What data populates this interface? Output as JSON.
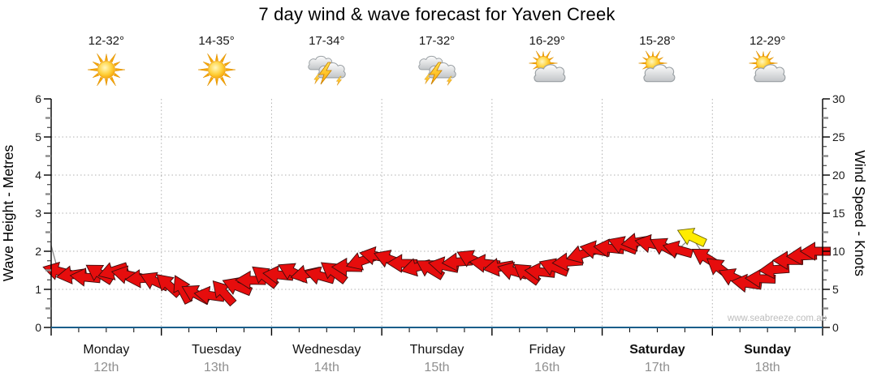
{
  "page": {
    "title": "7 day wind & wave forecast for Yaven Creek",
    "watermark": "www.seabreeze.com.au"
  },
  "days": [
    {
      "name": "Monday",
      "date": "12th",
      "temps": "12-32°",
      "icon": "sunny",
      "bold": false
    },
    {
      "name": "Tuesday",
      "date": "13th",
      "temps": "14-35°",
      "icon": "sunny",
      "bold": false
    },
    {
      "name": "Wednesday",
      "date": "14th",
      "temps": "17-34°",
      "icon": "storm",
      "bold": false
    },
    {
      "name": "Thursday",
      "date": "15th",
      "temps": "17-32°",
      "icon": "storm",
      "bold": false
    },
    {
      "name": "Friday",
      "date": "16th",
      "temps": "16-29°",
      "icon": "sun-cloud",
      "bold": false
    },
    {
      "name": "Saturday",
      "date": "17th",
      "temps": "15-28°",
      "icon": "sun-cloud",
      "bold": true
    },
    {
      "name": "Sunday",
      "date": "18th",
      "temps": "12-29°",
      "icon": "sun-cloud",
      "bold": true
    }
  ],
  "axes": {
    "left": {
      "title": "Wave Height - Metres",
      "tick_labels": [
        "0",
        "1",
        "2",
        "3",
        "4",
        "5",
        "6"
      ],
      "range": [
        0,
        6
      ]
    },
    "right": {
      "title": "Wind Speed - Knots",
      "tick_labels": [
        "0",
        "5",
        "10",
        "15",
        "20",
        "25",
        "30"
      ],
      "range": [
        0,
        30
      ]
    }
  },
  "chart_data": {
    "type": "wind-arrows",
    "title": "7 day wind & wave forecast for Yaven Creek",
    "x_categories": [
      "Monday 12th",
      "Tuesday 13th",
      "Wednesday 14th",
      "Thursday 15th",
      "Friday 16th",
      "Saturday 17th",
      "Sunday 18th"
    ],
    "samples_per_day": 8,
    "y_left": {
      "label": "Wave Height - Metres",
      "min": 0,
      "max": 6
    },
    "y_right": {
      "label": "Wind Speed - Knots",
      "min": 0,
      "max": 30
    },
    "grid": "dotted",
    "wind_speed_knots": [
      7.4,
      6.9,
      6.6,
      7.1,
      7.4,
      6.9,
      6.4,
      6.1,
      5.6,
      5.0,
      4.4,
      4.2,
      4.6,
      5.4,
      6.2,
      6.7,
      6.9,
      7.3,
      7.0,
      6.8,
      7.3,
      7.9,
      8.7,
      9.4,
      9.0,
      8.4,
      7.9,
      7.7,
      8.1,
      8.6,
      9.0,
      8.4,
      7.9,
      7.4,
      7.1,
      7.3,
      7.9,
      8.6,
      9.6,
      10.2,
      10.4,
      10.8,
      11.2,
      11.0,
      10.6,
      10.2,
      11.9,
      9.2,
      7.8,
      6.6,
      5.8,
      6.4,
      7.6,
      8.8,
      9.4,
      10.0
    ],
    "wind_dir_deg": [
      195,
      172,
      186,
      212,
      162,
      192,
      176,
      205,
      222,
      243,
      208,
      188,
      228,
      202,
      181,
      218,
      186,
      207,
      168,
      196,
      217,
      181,
      161,
      191,
      201,
      181,
      166,
      211,
      191,
      176,
      206,
      186,
      171,
      196,
      216,
      186,
      201,
      176,
      163,
      191,
      186,
      201,
      171,
      191,
      208,
      196,
      205,
      212,
      218,
      205,
      188,
      182,
      176,
      180,
      178,
      180
    ],
    "strong_wind_sample_index": 46,
    "wave_height_m": [
      1.48,
      1.38,
      1.32,
      1.42,
      1.48,
      1.38,
      1.28,
      1.22,
      1.12,
      1.0,
      0.88,
      0.84,
      0.92,
      1.08,
      1.24,
      1.34,
      1.38,
      1.46,
      1.4,
      1.36,
      1.46,
      1.58,
      1.74,
      1.88,
      1.8,
      1.68,
      1.58,
      1.54,
      1.62,
      1.72,
      1.8,
      1.68,
      1.58,
      1.48,
      1.42,
      1.46,
      1.58,
      1.72,
      1.92,
      2.04,
      2.08,
      2.16,
      2.24,
      2.2,
      2.12,
      2.04,
      2.38,
      1.84,
      1.56,
      1.32,
      1.16,
      1.28,
      1.52,
      1.76,
      1.88,
      2.0
    ],
    "wave_left_edge_m": 2.15
  },
  "colors": {
    "arrow_red": "#e60d0d",
    "arrow_red_outline": "#3c0c0c",
    "arrow_yellow": "#ffec00",
    "arrow_yellow_outline": "#6b6300",
    "grid": "#b0b0b0",
    "axis": "#000000",
    "axis_bottom": "#1a5e8a",
    "wave_line": "#8a8a8a",
    "tick_text": "#1a1a1a",
    "date_text": "#8f8f8f",
    "watermark_text": "#bdbdbd"
  }
}
